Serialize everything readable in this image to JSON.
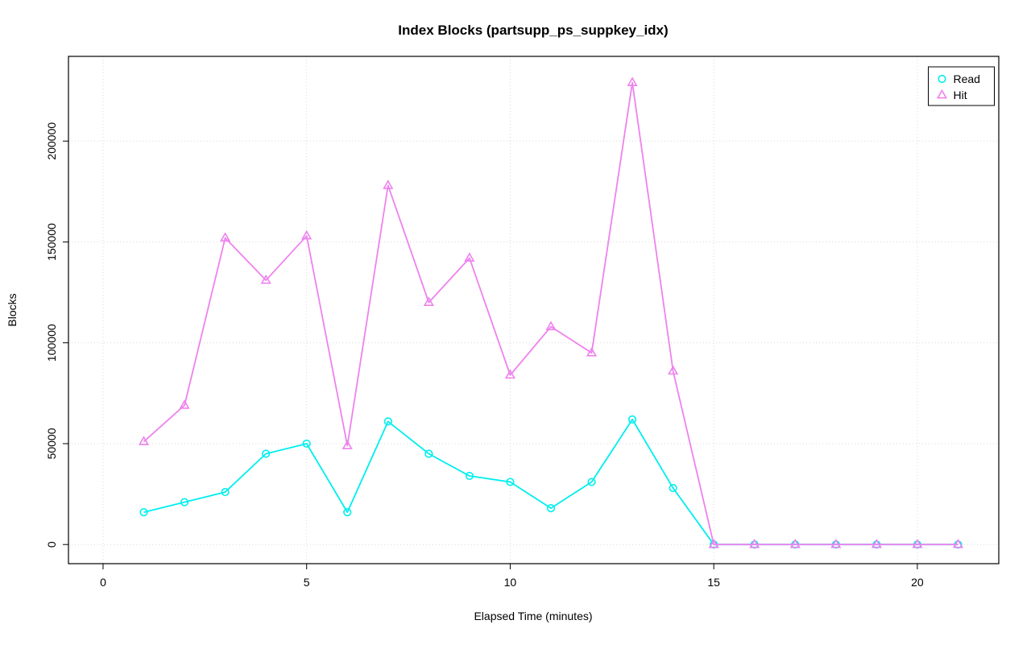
{
  "chart_data": {
    "type": "line",
    "title": "Index Blocks (partsupp_ps_suppkey_idx)",
    "xlabel": "Elapsed Time (minutes)",
    "ylabel": "Blocks",
    "x": [
      1,
      2,
      3,
      4,
      5,
      6,
      7,
      8,
      9,
      10,
      11,
      12,
      13,
      14,
      15,
      16,
      17,
      18,
      19,
      20,
      21
    ],
    "series": [
      {
        "name": "Read",
        "color": "#00EEEE",
        "marker": "circle",
        "values": [
          16000,
          21000,
          26000,
          45000,
          50000,
          16000,
          61000,
          45000,
          34000,
          31000,
          18000,
          31000,
          62000,
          28000,
          0,
          0,
          0,
          0,
          0,
          0,
          0
        ]
      },
      {
        "name": "Hit",
        "color": "#EE82EE",
        "marker": "triangle",
        "values": [
          51000,
          69000,
          152000,
          131000,
          153000,
          49000,
          178000,
          120000,
          142000,
          84000,
          108000,
          95000,
          229000,
          86000,
          0,
          0,
          0,
          0,
          0,
          0,
          0
        ]
      }
    ],
    "xticks": [
      0,
      5,
      10,
      15,
      20
    ],
    "yticks": [
      0,
      50000,
      100000,
      150000,
      200000
    ],
    "xlim": [
      -0.85,
      22.0
    ],
    "ylim": [
      -9500,
      242000
    ],
    "grid": true,
    "grid_color": "#D9D9D9",
    "legend_position": "topright",
    "background": "#FFFFFF",
    "axis_color": "#000000"
  }
}
